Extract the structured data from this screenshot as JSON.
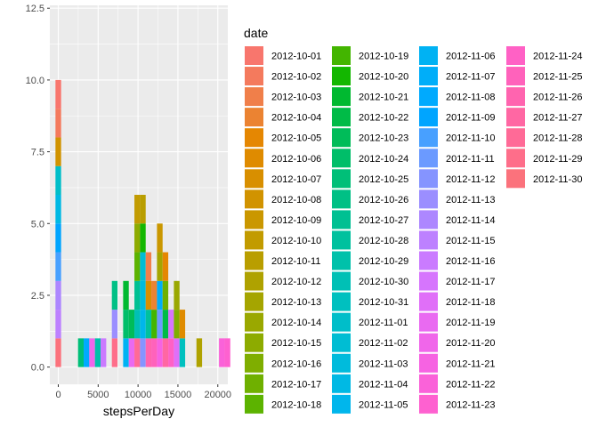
{
  "chart_data": {
    "type": "bar",
    "xlabel": "stepsPerDay",
    "ylabel": "",
    "xlim": [
      -1060,
      21254
    ],
    "ylim": [
      -0.6,
      12.6
    ],
    "x_ticks": [
      0,
      5000,
      10000,
      15000,
      20000
    ],
    "x_tick_labels": [
      "0",
      "5000",
      "10000",
      "15000",
      "20000"
    ],
    "y_ticks": [
      0,
      2.5,
      5,
      7.5,
      10,
      12.5
    ],
    "y_tick_labels": [
      "0.0",
      "2.5",
      "5.0",
      "7.5",
      "10.0",
      "12.5"
    ],
    "binwidth": 707,
    "grid": true,
    "legend": {
      "title": "date",
      "position": "right",
      "columns": 4,
      "entries": [
        "2012-10-01",
        "2012-10-02",
        "2012-10-03",
        "2012-10-04",
        "2012-10-05",
        "2012-10-06",
        "2012-10-07",
        "2012-10-08",
        "2012-10-09",
        "2012-10-10",
        "2012-10-11",
        "2012-10-12",
        "2012-10-13",
        "2012-10-14",
        "2012-10-15",
        "2012-10-16",
        "2012-10-17",
        "2012-10-18",
        "2012-10-19",
        "2012-10-20",
        "2012-10-21",
        "2012-10-22",
        "2012-10-23",
        "2012-10-24",
        "2012-10-25",
        "2012-10-26",
        "2012-10-27",
        "2012-10-28",
        "2012-10-29",
        "2012-10-30",
        "2012-10-31",
        "2012-11-01",
        "2012-11-02",
        "2012-11-03",
        "2012-11-04",
        "2012-11-05",
        "2012-11-06",
        "2012-11-07",
        "2012-11-08",
        "2012-11-09",
        "2012-11-10",
        "2012-11-11",
        "2012-11-12",
        "2012-11-13",
        "2012-11-14",
        "2012-11-15",
        "2012-11-16",
        "2012-11-17",
        "2012-11-18",
        "2012-11-19",
        "2012-11-20",
        "2012-11-21",
        "2012-11-22",
        "2012-11-23",
        "2012-11-24",
        "2012-11-25",
        "2012-11-26",
        "2012-11-27",
        "2012-11-28",
        "2012-11-29",
        "2012-11-30"
      ]
    },
    "series": [
      {
        "name": "2012-10-01",
        "x": 0,
        "y": 1
      },
      {
        "name": "2012-10-02",
        "x": 126,
        "y": 1
      },
      {
        "name": "2012-10-03",
        "x": 11352,
        "y": 1
      },
      {
        "name": "2012-10-04",
        "x": 12116,
        "y": 1
      },
      {
        "name": "2012-10-05",
        "x": 13294,
        "y": 1
      },
      {
        "name": "2012-10-06",
        "x": 15420,
        "y": 1
      },
      {
        "name": "2012-10-07",
        "x": 11015,
        "y": 1
      },
      {
        "name": "2012-10-08",
        "x": 0,
        "y": 1
      },
      {
        "name": "2012-10-09",
        "x": 12811,
        "y": 1
      },
      {
        "name": "2012-10-10",
        "x": 9900,
        "y": 1
      },
      {
        "name": "2012-10-11",
        "x": 10304,
        "y": 1
      },
      {
        "name": "2012-10-12",
        "x": 17382,
        "y": 1
      },
      {
        "name": "2012-10-13",
        "x": 12426,
        "y": 1
      },
      {
        "name": "2012-10-14",
        "x": 15098,
        "y": 1
      },
      {
        "name": "2012-10-15",
        "x": 10139,
        "y": 1
      },
      {
        "name": "2012-10-16",
        "x": 15084,
        "y": 1
      },
      {
        "name": "2012-10-17",
        "x": 13452,
        "y": 1
      },
      {
        "name": "2012-10-18",
        "x": 10056,
        "y": 1
      },
      {
        "name": "2012-10-19",
        "x": 11829,
        "y": 1
      },
      {
        "name": "2012-10-20",
        "x": 10395,
        "y": 1
      },
      {
        "name": "2012-10-21",
        "x": 8821,
        "y": 1
      },
      {
        "name": "2012-10-22",
        "x": 13460,
        "y": 1
      },
      {
        "name": "2012-10-23",
        "x": 8918,
        "y": 1
      },
      {
        "name": "2012-10-24",
        "x": 8355,
        "y": 1
      },
      {
        "name": "2012-10-25",
        "x": 2492,
        "y": 1
      },
      {
        "name": "2012-10-26",
        "x": 6778,
        "y": 1
      },
      {
        "name": "2012-10-27",
        "x": 10119,
        "y": 1
      },
      {
        "name": "2012-10-28",
        "x": 11458,
        "y": 1
      },
      {
        "name": "2012-10-29",
        "x": 5018,
        "y": 1
      },
      {
        "name": "2012-10-30",
        "x": 9819,
        "y": 1
      },
      {
        "name": "2012-10-31",
        "x": 15414,
        "y": 1
      },
      {
        "name": "2012-11-01",
        "x": 0,
        "y": 1
      },
      {
        "name": "2012-11-02",
        "x": 10600,
        "y": 1
      },
      {
        "name": "2012-11-03",
        "x": 10571,
        "y": 1
      },
      {
        "name": "2012-11-04",
        "x": 0,
        "y": 1
      },
      {
        "name": "2012-11-05",
        "x": 10439,
        "y": 1
      },
      {
        "name": "2012-11-06",
        "x": 8334,
        "y": 1
      },
      {
        "name": "2012-11-07",
        "x": 12883,
        "y": 1
      },
      {
        "name": "2012-11-08",
        "x": 3219,
        "y": 1
      },
      {
        "name": "2012-11-09",
        "x": 0,
        "y": 1
      },
      {
        "name": "2012-11-10",
        "x": 0,
        "y": 1
      },
      {
        "name": "2012-11-11",
        "x": 12608,
        "y": 1
      },
      {
        "name": "2012-11-12",
        "x": 10765,
        "y": 1
      },
      {
        "name": "2012-11-13",
        "x": 7336,
        "y": 1
      },
      {
        "name": "2012-11-14",
        "x": 0,
        "y": 1
      },
      {
        "name": "2012-11-15",
        "x": 41,
        "y": 1
      },
      {
        "name": "2012-11-16",
        "x": 5441,
        "y": 1
      },
      {
        "name": "2012-11-17",
        "x": 14339,
        "y": 1
      },
      {
        "name": "2012-11-18",
        "x": 15110,
        "y": 1
      },
      {
        "name": "2012-11-19",
        "x": 8841,
        "y": 1
      },
      {
        "name": "2012-11-20",
        "x": 4472,
        "y": 1
      },
      {
        "name": "2012-11-21",
        "x": 12787,
        "y": 1
      },
      {
        "name": "2012-11-22",
        "x": 20427,
        "y": 1
      },
      {
        "name": "2012-11-23",
        "x": 21194,
        "y": 1
      },
      {
        "name": "2012-11-24",
        "x": 14478,
        "y": 1
      },
      {
        "name": "2012-11-25",
        "x": 11834,
        "y": 1
      },
      {
        "name": "2012-11-26",
        "x": 11162,
        "y": 1
      },
      {
        "name": "2012-11-27",
        "x": 13646,
        "y": 1
      },
      {
        "name": "2012-11-28",
        "x": 10183,
        "y": 1
      },
      {
        "name": "2012-11-29",
        "x": 7047,
        "y": 1
      },
      {
        "name": "2012-11-30",
        "x": 0,
        "y": 1
      }
    ]
  }
}
